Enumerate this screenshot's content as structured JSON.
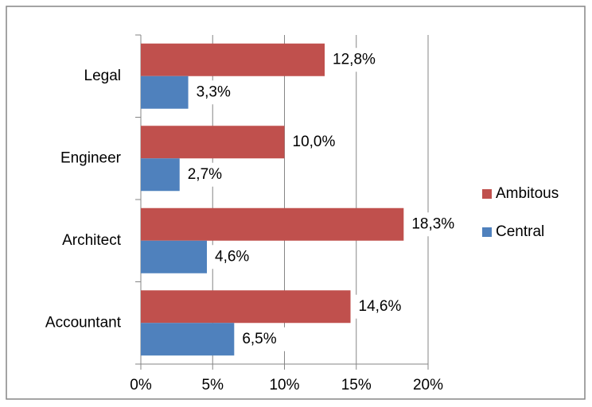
{
  "chart_data": {
    "type": "hbar",
    "categories": [
      "Accountant",
      "Architect",
      "Engineer",
      "Legal"
    ],
    "series": [
      {
        "name": "Ambitous",
        "color": "#c0504d",
        "values": [
          14.6,
          18.3,
          10.0,
          12.8
        ],
        "value_labels": [
          "14,6%",
          "18,3%",
          "10,0%",
          "12,8%"
        ]
      },
      {
        "name": "Central",
        "color": "#4f81bd",
        "values": [
          6.5,
          4.6,
          2.7,
          3.3
        ],
        "value_labels": [
          "6,5%",
          "4,6%",
          "2,7%",
          "3,3%"
        ]
      }
    ],
    "xlim": [
      0,
      20
    ],
    "xticks": [
      {
        "value": 0,
        "label": "0%"
      },
      {
        "value": 5,
        "label": "5%"
      },
      {
        "value": 10,
        "label": "10%"
      },
      {
        "value": 15,
        "label": "15%"
      },
      {
        "value": 20,
        "label": "20%"
      }
    ],
    "grid": true,
    "legend": "right"
  }
}
